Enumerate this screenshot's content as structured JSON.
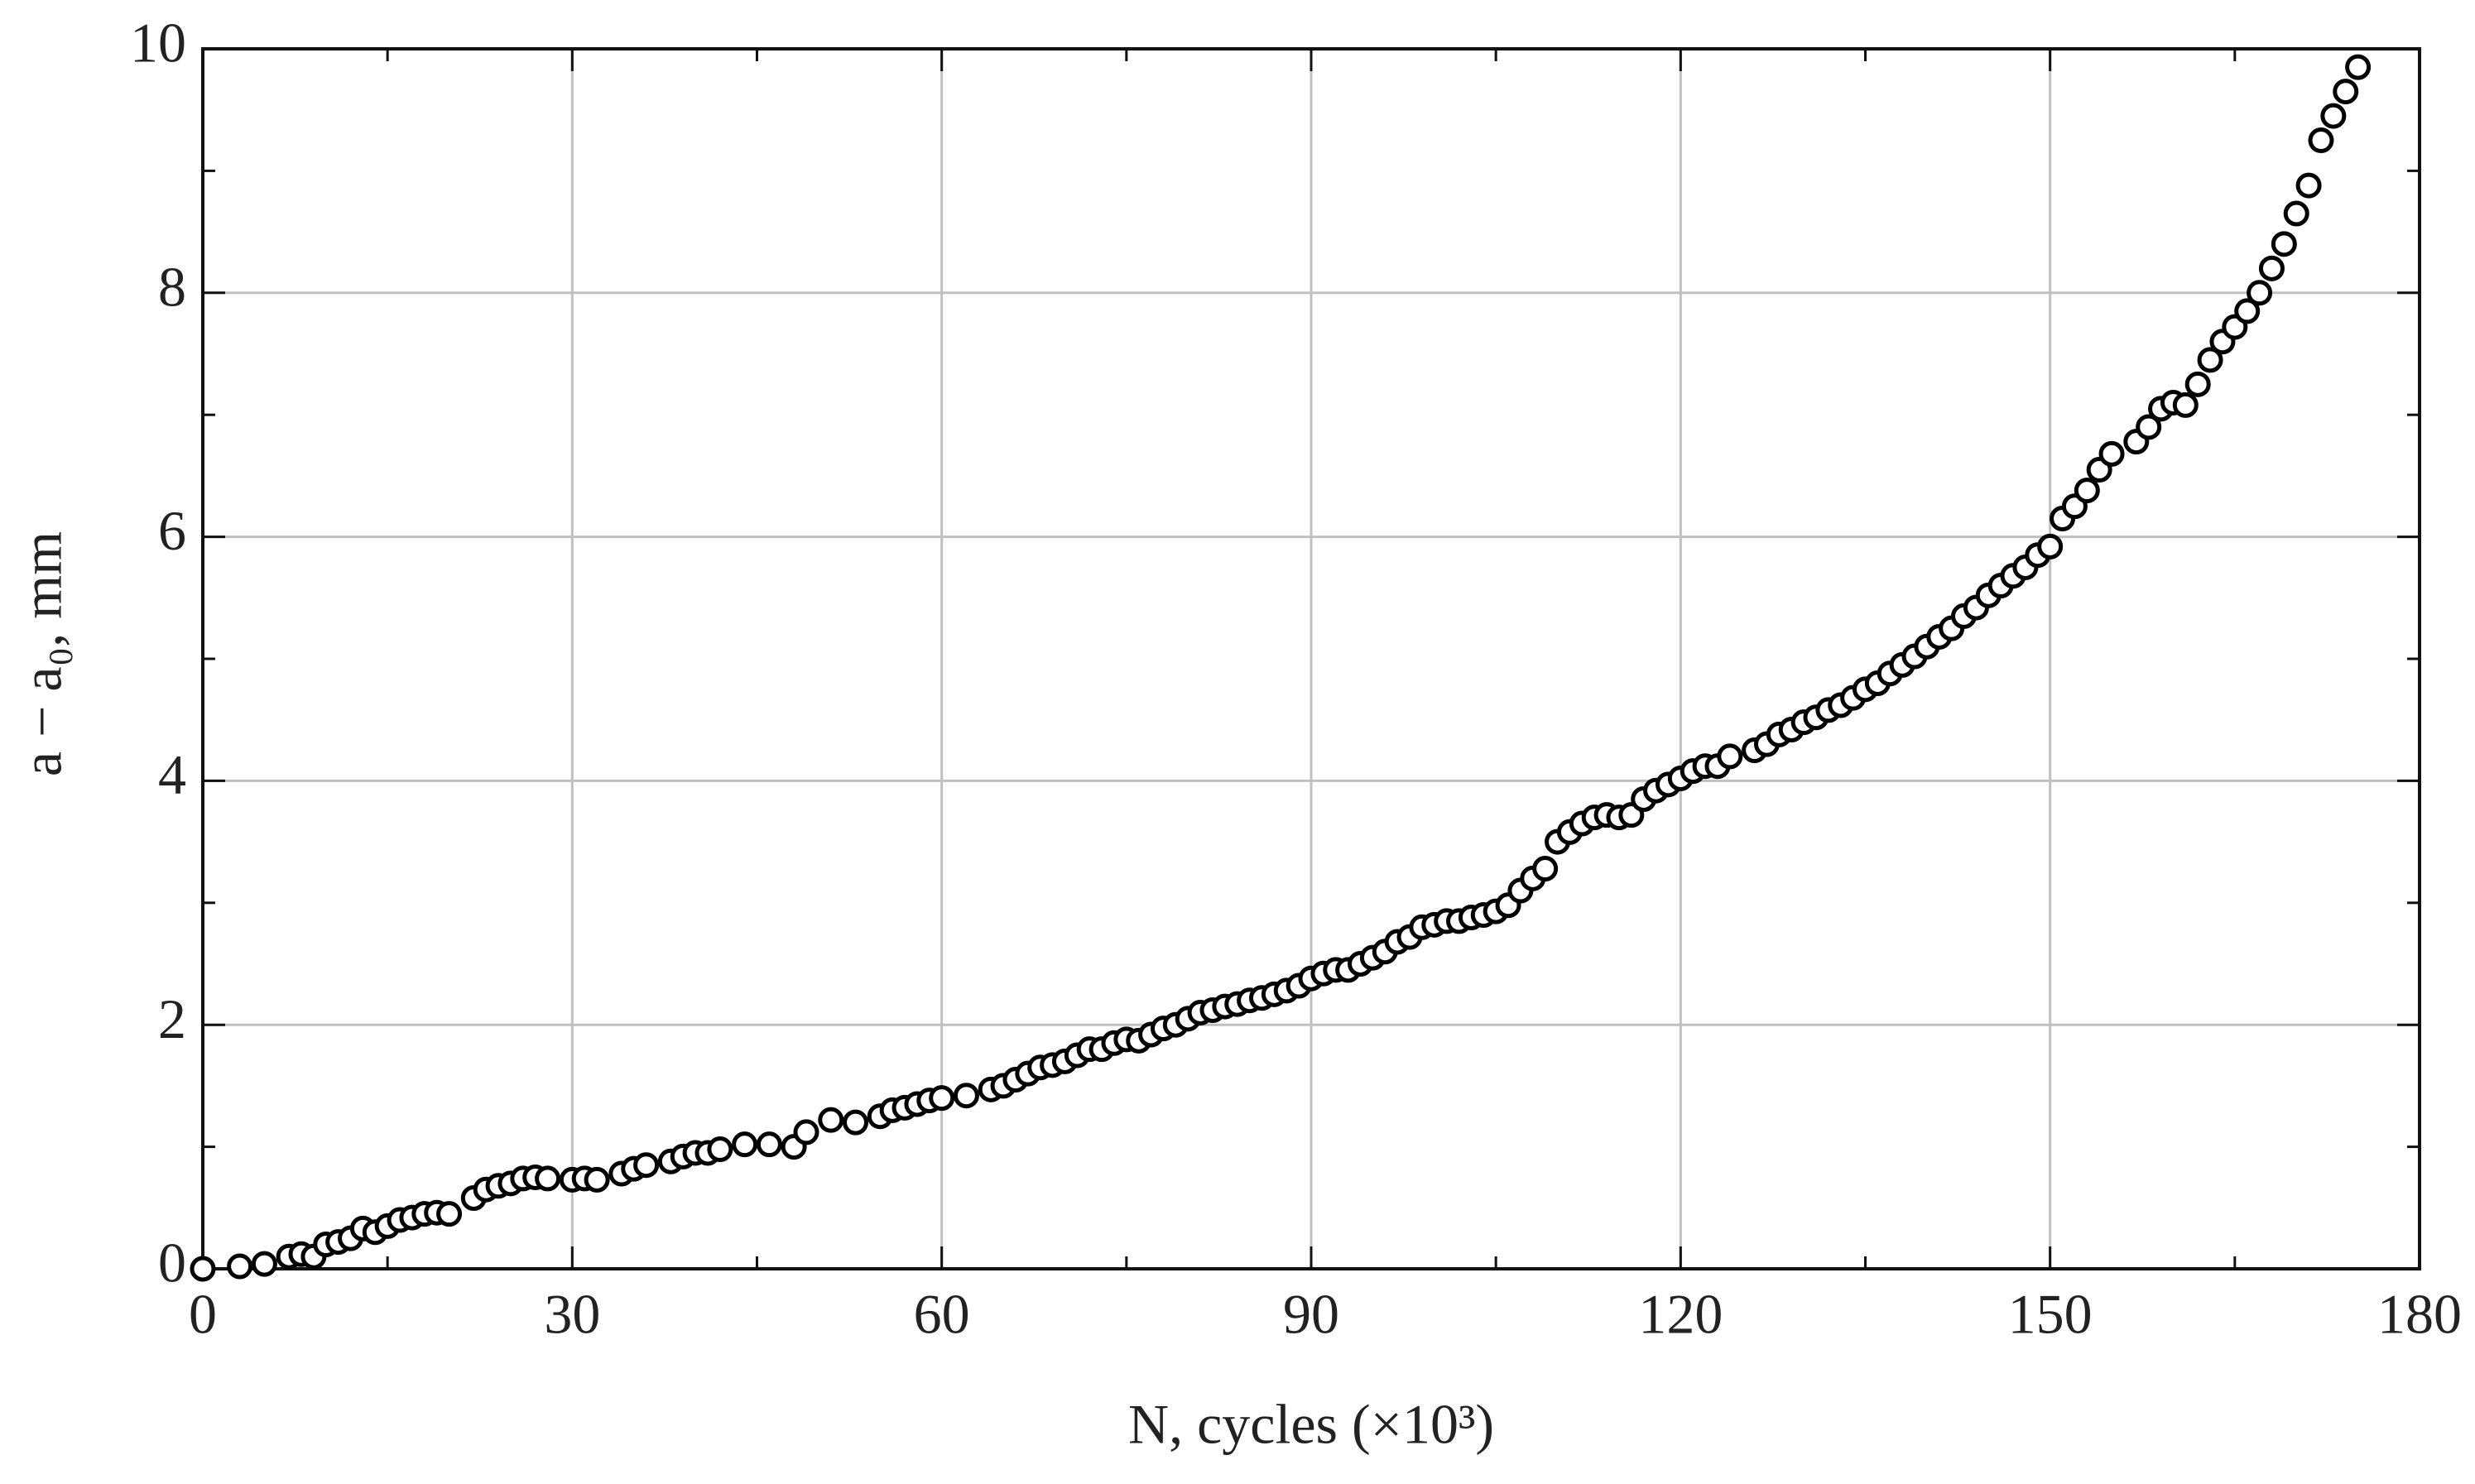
{
  "chart_data": {
    "type": "scatter",
    "xlabel": "N, cycles (×10³)",
    "ylabel": "a − a₀, mm",
    "xlim": [
      0,
      180
    ],
    "xticks": [
      0,
      30,
      60,
      90,
      120,
      150,
      180
    ],
    "xminorticks": [
      15,
      45,
      75,
      105,
      135,
      165
    ],
    "ylim": [
      0,
      10
    ],
    "yticks": [
      0,
      2,
      4,
      6,
      8,
      10
    ],
    "yminorticks": [
      1,
      3,
      5,
      7,
      9
    ],
    "grid": true,
    "color": "#000000",
    "series": [
      {
        "x": [
          0,
          3,
          5,
          7,
          8,
          9,
          10,
          11,
          12,
          13,
          14,
          15,
          16,
          17,
          18,
          19,
          20,
          22,
          23,
          24,
          25,
          26,
          27,
          28,
          30,
          31,
          32,
          34,
          35,
          36,
          38,
          39,
          40,
          41,
          42,
          44,
          46,
          48,
          49,
          51,
          53,
          55,
          56,
          57,
          58,
          59,
          60,
          62,
          64,
          65,
          66,
          67,
          68,
          69,
          70,
          71,
          72,
          73,
          74,
          75,
          76,
          77,
          78,
          79,
          80,
          81,
          82,
          83,
          84,
          85,
          86,
          87,
          88,
          89,
          90,
          91,
          92,
          93,
          94,
          95,
          96,
          97,
          98,
          99,
          100,
          101,
          102,
          103,
          104,
          105,
          106,
          107,
          108,
          109,
          110,
          111,
          112,
          113,
          114,
          115,
          116,
          117,
          118,
          119,
          120,
          121,
          122,
          123,
          124,
          126,
          127,
          128,
          129,
          130,
          131,
          132,
          133,
          134,
          135,
          136,
          137,
          138,
          139,
          140,
          141,
          142,
          143,
          144,
          145,
          146,
          147,
          148,
          149,
          150,
          151,
          152,
          153,
          154,
          155,
          157,
          158,
          159,
          160,
          161,
          162,
          163,
          164,
          165,
          166,
          167,
          168,
          169,
          170,
          171,
          172,
          173,
          174,
          175
        ],
        "values": [
          0,
          0.02,
          0.04,
          0.1,
          0.12,
          0.1,
          0.2,
          0.22,
          0.25,
          0.33,
          0.3,
          0.35,
          0.4,
          0.42,
          0.45,
          0.46,
          0.45,
          0.58,
          0.65,
          0.68,
          0.7,
          0.74,
          0.75,
          0.74,
          0.73,
          0.74,
          0.73,
          0.78,
          0.82,
          0.85,
          0.88,
          0.92,
          0.95,
          0.95,
          0.98,
          1.02,
          1.02,
          1.0,
          1.12,
          1.22,
          1.2,
          1.25,
          1.3,
          1.32,
          1.35,
          1.38,
          1.4,
          1.42,
          1.47,
          1.5,
          1.55,
          1.6,
          1.65,
          1.67,
          1.7,
          1.75,
          1.8,
          1.8,
          1.85,
          1.88,
          1.87,
          1.92,
          1.97,
          2.0,
          2.05,
          2.1,
          2.12,
          2.15,
          2.17,
          2.2,
          2.22,
          2.25,
          2.28,
          2.32,
          2.38,
          2.42,
          2.45,
          2.45,
          2.5,
          2.55,
          2.6,
          2.68,
          2.72,
          2.8,
          2.82,
          2.85,
          2.85,
          2.88,
          2.9,
          2.93,
          2.98,
          3.1,
          3.2,
          3.28,
          3.5,
          3.58,
          3.65,
          3.7,
          3.72,
          3.7,
          3.72,
          3.85,
          3.92,
          3.97,
          4.02,
          4.08,
          4.12,
          4.12,
          4.2,
          4.25,
          4.3,
          4.38,
          4.42,
          4.48,
          4.52,
          4.58,
          4.62,
          4.68,
          4.75,
          4.8,
          4.88,
          4.95,
          5.02,
          5.1,
          5.18,
          5.25,
          5.35,
          5.42,
          5.52,
          5.6,
          5.68,
          5.75,
          5.85,
          5.92,
          6.15,
          6.25,
          6.38,
          6.55,
          6.68,
          6.78,
          6.9,
          7.05,
          7.1,
          7.08,
          7.25,
          7.45,
          7.6,
          7.72,
          7.85,
          8.0,
          8.2,
          8.4,
          8.65,
          8.88,
          9.25,
          9.45,
          9.65,
          9.85
        ]
      }
    ]
  }
}
